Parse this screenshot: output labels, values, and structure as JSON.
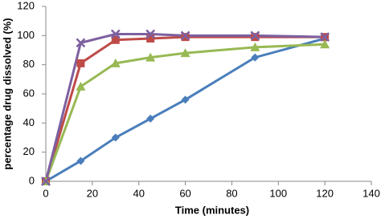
{
  "chart_data": {
    "type": "line",
    "x_label": "Time (minutes)",
    "y_label": "percentage drug dissolved (%)",
    "x": [
      0,
      15,
      30,
      45,
      60,
      90,
      120
    ],
    "series": [
      {
        "color": "#4a7ebb",
        "marker": "diamond",
        "values": [
          0,
          14,
          30,
          43,
          56,
          85,
          98
        ]
      },
      {
        "color": "#be4b48",
        "marker": "square",
        "values": [
          0,
          81,
          97,
          98,
          99,
          99,
          99
        ]
      },
      {
        "color": "#98b954",
        "marker": "triangle",
        "values": [
          0,
          65,
          81,
          85,
          88,
          92,
          94
        ]
      },
      {
        "color": "#7d60a0",
        "marker": "x",
        "values": [
          0,
          95,
          101,
          101,
          100,
          100,
          99
        ]
      }
    ],
    "xlim": [
      0,
      140
    ],
    "xticks": [
      0,
      20,
      40,
      60,
      80,
      100,
      120,
      140
    ],
    "ylim": [
      0,
      120
    ],
    "yticks": [
      0,
      20,
      40,
      60,
      80,
      100,
      120
    ],
    "grid": false
  }
}
